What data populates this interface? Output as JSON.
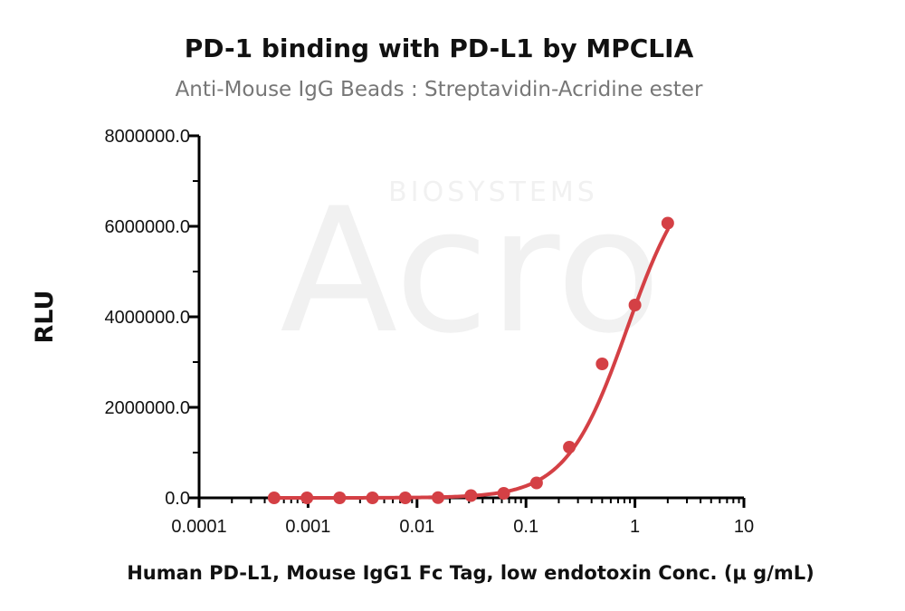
{
  "chart_data": {
    "type": "scatter",
    "title": "PD-1 binding with PD-L1  by MPCLIA",
    "subtitle": "Anti-Mouse IgG Beads : Streptavidin-Acridine ester",
    "xlabel": "Human PD-L1, Mouse IgG1 Fc Tag, low endotoxin Conc. (μ g/mL)",
    "ylabel": "RLU",
    "xscale": "log",
    "xlim": [
      0.0001,
      10
    ],
    "ylim": [
      0,
      8000000
    ],
    "xticks": [
      "0.0001",
      "0.001",
      "0.01",
      "0.1",
      "1",
      "10"
    ],
    "yticks": [
      "0.0",
      "2000000.0",
      "4000000.0",
      "6000000.0",
      "8000000.0"
    ],
    "grid": false,
    "series": [
      {
        "x": [
          0.000488,
          0.000977,
          0.00195,
          0.0039,
          0.0078,
          0.0156,
          0.03125,
          0.0625,
          0.125,
          0.25,
          0.5,
          1,
          2
        ],
        "y": [
          0,
          0,
          0,
          0,
          0,
          5000,
          50000,
          100000,
          330000,
          1120000,
          2960000,
          4260000,
          6070000
        ],
        "color": "#d44045"
      }
    ],
    "fit_curve": {
      "type": "4PL",
      "bottom": 0,
      "top": 7500000,
      "ec50": 0.85,
      "hill": 1.55,
      "color": "#d44045"
    }
  },
  "watermark": {
    "brand": "Acro",
    "tagline": "BIOSYSTEMS"
  }
}
